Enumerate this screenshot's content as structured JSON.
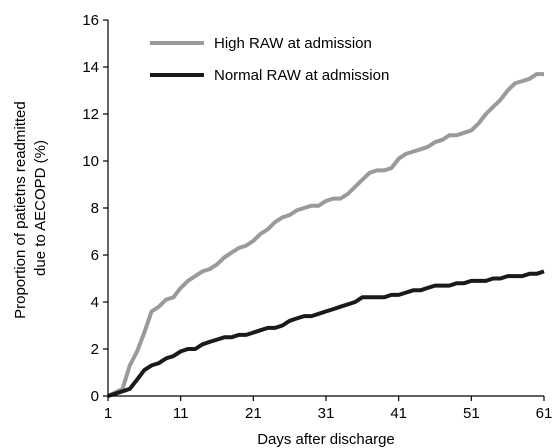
{
  "chart_data": {
    "type": "line",
    "title": "",
    "xlabel": "Days after discharge",
    "ylabel_lines": [
      "Proportion of patietns readmitted",
      "due to AECOPD (%)"
    ],
    "xlim": [
      1,
      61
    ],
    "ylim": [
      0,
      16
    ],
    "x_ticks": [
      1,
      11,
      21,
      31,
      41,
      51,
      61
    ],
    "y_ticks": [
      0,
      2,
      4,
      6,
      8,
      10,
      12,
      14,
      16
    ],
    "grid": false,
    "legend_position": "top-left",
    "series": [
      {
        "name": "High RAW at admission",
        "color": "#9a9a9a",
        "x": [
          1,
          3,
          4,
          5,
          6,
          7,
          8,
          9,
          10,
          11,
          12,
          13,
          14,
          15,
          16,
          17,
          18,
          19,
          20,
          21,
          22,
          23,
          24,
          25,
          26,
          27,
          28,
          29,
          30,
          31,
          32,
          33,
          34,
          35,
          36,
          37,
          38,
          39,
          40,
          41,
          42,
          43,
          44,
          45,
          46,
          47,
          48,
          49,
          50,
          51,
          52,
          53,
          54,
          55,
          56,
          57,
          58,
          59,
          60,
          61
        ],
        "values": [
          0.0,
          0.3,
          1.3,
          1.9,
          2.7,
          3.6,
          3.8,
          4.1,
          4.2,
          4.6,
          4.9,
          5.1,
          5.3,
          5.4,
          5.6,
          5.9,
          6.1,
          6.3,
          6.4,
          6.6,
          6.9,
          7.1,
          7.4,
          7.6,
          7.7,
          7.9,
          8.0,
          8.1,
          8.1,
          8.3,
          8.4,
          8.4,
          8.6,
          8.9,
          9.2,
          9.5,
          9.6,
          9.6,
          9.7,
          10.1,
          10.3,
          10.4,
          10.5,
          10.6,
          10.8,
          10.9,
          11.1,
          11.1,
          11.2,
          11.3,
          11.6,
          12.0,
          12.3,
          12.6,
          13.0,
          13.3,
          13.4,
          13.5,
          13.7,
          13.7
        ]
      },
      {
        "name": "Normal RAW at admission",
        "color": "#1a1a1a",
        "x": [
          1,
          3,
          4,
          5,
          6,
          7,
          8,
          9,
          10,
          11,
          12,
          13,
          14,
          15,
          16,
          17,
          18,
          19,
          20,
          21,
          22,
          23,
          24,
          25,
          26,
          27,
          28,
          29,
          30,
          31,
          32,
          33,
          34,
          35,
          36,
          37,
          38,
          39,
          40,
          41,
          42,
          43,
          44,
          45,
          46,
          47,
          48,
          49,
          50,
          51,
          52,
          53,
          54,
          55,
          56,
          57,
          58,
          59,
          60,
          61
        ],
        "values": [
          0.0,
          0.2,
          0.3,
          0.7,
          1.1,
          1.3,
          1.4,
          1.6,
          1.7,
          1.9,
          2.0,
          2.0,
          2.2,
          2.3,
          2.4,
          2.5,
          2.5,
          2.6,
          2.6,
          2.7,
          2.8,
          2.9,
          2.9,
          3.0,
          3.2,
          3.3,
          3.4,
          3.4,
          3.5,
          3.6,
          3.7,
          3.8,
          3.9,
          4.0,
          4.2,
          4.2,
          4.2,
          4.2,
          4.3,
          4.3,
          4.4,
          4.5,
          4.5,
          4.6,
          4.7,
          4.7,
          4.7,
          4.8,
          4.8,
          4.9,
          4.9,
          4.9,
          5.0,
          5.0,
          5.1,
          5.1,
          5.1,
          5.2,
          5.2,
          5.3
        ]
      }
    ]
  }
}
